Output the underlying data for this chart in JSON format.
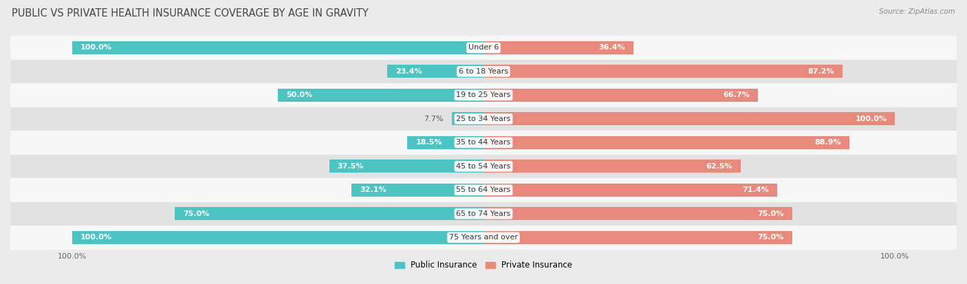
{
  "title": "PUBLIC VS PRIVATE HEALTH INSURANCE COVERAGE BY AGE IN GRAVITY",
  "source": "Source: ZipAtlas.com",
  "categories": [
    "Under 6",
    "6 to 18 Years",
    "19 to 25 Years",
    "25 to 34 Years",
    "35 to 44 Years",
    "45 to 54 Years",
    "55 to 64 Years",
    "65 to 74 Years",
    "75 Years and over"
  ],
  "public_values": [
    100.0,
    23.4,
    50.0,
    7.7,
    18.5,
    37.5,
    32.1,
    75.0,
    100.0
  ],
  "private_values": [
    36.4,
    87.2,
    66.7,
    100.0,
    88.9,
    62.5,
    71.4,
    75.0,
    75.0
  ],
  "public_color": "#4dc4c4",
  "private_color": "#e8897c",
  "bg_color": "#ebebeb",
  "row_bg_even": "#f7f7f7",
  "row_bg_odd": "#e2e2e2",
  "label_color_inside": "#ffffff",
  "label_color_outside": "#555555",
  "title_fontsize": 10.5,
  "bar_label_fontsize": 8,
  "category_fontsize": 8,
  "legend_fontsize": 8.5,
  "source_fontsize": 7.5,
  "figsize": [
    14.06,
    4.13
  ]
}
